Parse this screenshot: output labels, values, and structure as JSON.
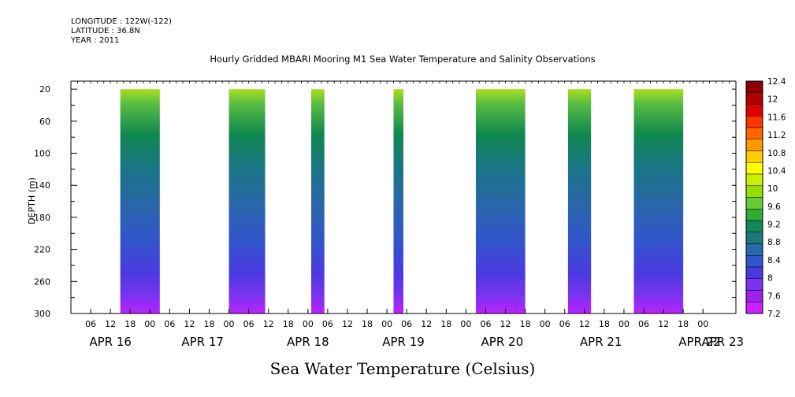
{
  "header": {
    "longitude": "LONGITUDE : 122W(-122)",
    "latitude": "LATITUDE : 36.8N",
    "year": "YEAR : 2011"
  },
  "chart_data": {
    "type": "heatmap",
    "title": "Hourly Gridded MBARI Mooring M1 Sea Water Temperature and Salinity Observations",
    "xlabel": "Sea Water Temperature (Celsius)",
    "ylabel": "DEPTH (m)",
    "y_ticks": [
      20,
      60,
      100,
      140,
      180,
      220,
      260,
      300
    ],
    "ylim": [
      300,
      10
    ],
    "hour_labels": [
      "06",
      "12",
      "18",
      "00",
      "06",
      "12",
      "18",
      "00",
      "06",
      "12",
      "18",
      "00",
      "06",
      "12",
      "18",
      "00",
      "06",
      "12",
      "18",
      "00",
      "06",
      "12",
      "18",
      "00",
      "06",
      "12",
      "18",
      "00",
      "06",
      "12",
      "18",
      "00"
    ],
    "day_labels": [
      "APR 16",
      "APR 17",
      "APR 18",
      "APR 19",
      "APR 20",
      "APR 21",
      "APR 22",
      "APR 23"
    ],
    "x_range_hours_from_apr16_00": [
      0,
      202
    ],
    "colorbar_levels": [
      12.4,
      12,
      11.6,
      11.2,
      10.8,
      10.4,
      10,
      9.6,
      9.2,
      8.8,
      8.4,
      8,
      7.6,
      7.2
    ],
    "colorbar_colors": [
      "#8b0000",
      "#b00000",
      "#e00000",
      "#ff3300",
      "#ff6600",
      "#ff9900",
      "#ffcc00",
      "#ffff00",
      "#ccf000",
      "#99dd00",
      "#66cc33",
      "#33aa33",
      "#118855",
      "#1a7a7a",
      "#2a6aaa",
      "#3355cc",
      "#4a3ae0",
      "#7a33ee",
      "#a020f0",
      "#cc22ff"
    ],
    "data_segments_hours_from_apr16_00": [
      [
        15,
        27
      ],
      [
        48,
        59
      ],
      [
        73,
        77
      ],
      [
        98,
        101
      ],
      [
        123,
        138
      ],
      [
        151,
        158
      ],
      [
        171,
        186
      ]
    ],
    "surface_temperature_range": [
      9.6,
      10.4
    ],
    "bottom_temperature_range": [
      7.2,
      7.6
    ]
  }
}
